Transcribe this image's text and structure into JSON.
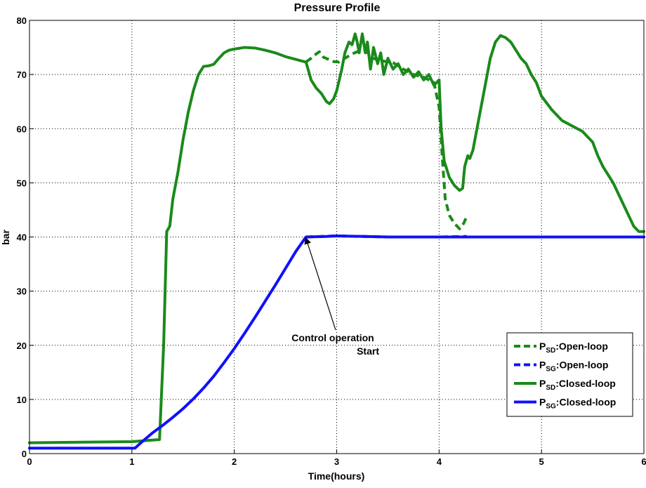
{
  "chart_data": {
    "type": "line",
    "title": "Pressure Profile",
    "xlabel": "Time(hours)",
    "ylabel": "bar",
    "xlim": [
      0,
      6
    ],
    "ylim": [
      0,
      80
    ],
    "xticks": [
      "0",
      "1",
      "2",
      "3",
      "4",
      "5",
      "6"
    ],
    "yticks": [
      "0",
      "10",
      "20",
      "30",
      "40",
      "50",
      "60",
      "70",
      "80"
    ],
    "grid": true,
    "legend_position": "bottom-right",
    "annotation": {
      "line1": "Control operation",
      "line2": "Start",
      "arrow_target": [
        2.7,
        40
      ]
    },
    "colors": {
      "green": "#1a8a1a",
      "blue": "#1010ff"
    },
    "series": [
      {
        "name_main": "P",
        "name_sub": "SD",
        "name_suffix": ":Open-loop",
        "color": "green",
        "dash": true,
        "points": [
          [
            2.7,
            72.3
          ],
          [
            2.75,
            73
          ],
          [
            2.8,
            73.8
          ],
          [
            2.83,
            74.2
          ],
          [
            2.87,
            73.2
          ],
          [
            2.92,
            72.8
          ],
          [
            2.97,
            72.4
          ],
          [
            3.02,
            72.3
          ],
          [
            3.08,
            73
          ],
          [
            3.15,
            73.8
          ],
          [
            3.2,
            74.2
          ],
          [
            3.28,
            74.5
          ],
          [
            3.35,
            73
          ],
          [
            3.45,
            72.5
          ],
          [
            3.55,
            72.2
          ],
          [
            3.65,
            71
          ],
          [
            3.75,
            70
          ],
          [
            3.85,
            69.5
          ],
          [
            3.95,
            68.5
          ],
          [
            4.0,
            64
          ],
          [
            4.03,
            55
          ],
          [
            4.06,
            47
          ],
          [
            4.1,
            44
          ],
          [
            4.15,
            42.5
          ],
          [
            4.2,
            41.5
          ],
          [
            4.24,
            42.5
          ],
          [
            4.27,
            43.8
          ]
        ]
      },
      {
        "name_main": "P",
        "name_sub": "SG",
        "name_suffix": ":Open-loop",
        "color": "blue",
        "dash": true,
        "points": [
          [
            2.7,
            40
          ],
          [
            3.0,
            40.2
          ],
          [
            3.5,
            40
          ],
          [
            4.0,
            40
          ],
          [
            4.27,
            40.1
          ]
        ]
      },
      {
        "name_main": "P",
        "name_sub": "SD",
        "name_suffix": ":Closed-loop",
        "color": "green",
        "dash": false,
        "points": [
          [
            0,
            2
          ],
          [
            0.5,
            2.1
          ],
          [
            1.0,
            2.2
          ],
          [
            1.2,
            2.5
          ],
          [
            1.27,
            2.6
          ],
          [
            1.31,
            20
          ],
          [
            1.34,
            41
          ],
          [
            1.37,
            42
          ],
          [
            1.4,
            47
          ],
          [
            1.45,
            52
          ],
          [
            1.5,
            58
          ],
          [
            1.55,
            63
          ],
          [
            1.6,
            67
          ],
          [
            1.65,
            70
          ],
          [
            1.7,
            71.5
          ],
          [
            1.75,
            71.6
          ],
          [
            1.8,
            71.9
          ],
          [
            1.85,
            73
          ],
          [
            1.9,
            74
          ],
          [
            1.95,
            74.5
          ],
          [
            2.0,
            74.7
          ],
          [
            2.1,
            75
          ],
          [
            2.2,
            74.9
          ],
          [
            2.3,
            74.5
          ],
          [
            2.4,
            74
          ],
          [
            2.5,
            73.3
          ],
          [
            2.6,
            72.8
          ],
          [
            2.7,
            72.3
          ],
          [
            2.72,
            71
          ],
          [
            2.75,
            69
          ],
          [
            2.8,
            67.5
          ],
          [
            2.85,
            66.5
          ],
          [
            2.9,
            65
          ],
          [
            2.93,
            64.6
          ],
          [
            2.97,
            65.5
          ],
          [
            3.0,
            67
          ],
          [
            3.05,
            71
          ],
          [
            3.08,
            74
          ],
          [
            3.12,
            76
          ],
          [
            3.15,
            75.5
          ],
          [
            3.18,
            77.5
          ],
          [
            3.2,
            76
          ],
          [
            3.22,
            74
          ],
          [
            3.25,
            77.5
          ],
          [
            3.28,
            74
          ],
          [
            3.3,
            76
          ],
          [
            3.33,
            71
          ],
          [
            3.36,
            75
          ],
          [
            3.4,
            72
          ],
          [
            3.43,
            74
          ],
          [
            3.46,
            70
          ],
          [
            3.5,
            73
          ],
          [
            3.55,
            71
          ],
          [
            3.6,
            72
          ],
          [
            3.65,
            70
          ],
          [
            3.7,
            71
          ],
          [
            3.75,
            69.5
          ],
          [
            3.8,
            70.5
          ],
          [
            3.85,
            69
          ],
          [
            3.9,
            70
          ],
          [
            3.95,
            68
          ],
          [
            4.0,
            69
          ],
          [
            4.02,
            60
          ],
          [
            4.05,
            54
          ],
          [
            4.1,
            51
          ],
          [
            4.15,
            49.5
          ],
          [
            4.2,
            48.6
          ],
          [
            4.23,
            49
          ],
          [
            4.25,
            53
          ],
          [
            4.28,
            55
          ],
          [
            4.3,
            54.5
          ],
          [
            4.33,
            56
          ],
          [
            4.36,
            59
          ],
          [
            4.4,
            63
          ],
          [
            4.45,
            68
          ],
          [
            4.5,
            73
          ],
          [
            4.55,
            76
          ],
          [
            4.6,
            77.2
          ],
          [
            4.65,
            76.8
          ],
          [
            4.7,
            76
          ],
          [
            4.75,
            74.5
          ],
          [
            4.8,
            73
          ],
          [
            4.85,
            72
          ],
          [
            4.9,
            70
          ],
          [
            4.95,
            68.5
          ],
          [
            5.0,
            66
          ],
          [
            5.1,
            63.5
          ],
          [
            5.2,
            61.5
          ],
          [
            5.3,
            60.5
          ],
          [
            5.4,
            59.5
          ],
          [
            5.5,
            57.5
          ],
          [
            5.55,
            55
          ],
          [
            5.6,
            53
          ],
          [
            5.7,
            50
          ],
          [
            5.8,
            46
          ],
          [
            5.9,
            42
          ],
          [
            5.95,
            41
          ],
          [
            6.0,
            41
          ]
        ]
      },
      {
        "name_main": "P",
        "name_sub": "SG",
        "name_suffix": ":Closed-loop",
        "color": "blue",
        "dash": false,
        "points": [
          [
            0,
            1
          ],
          [
            0.5,
            1
          ],
          [
            1.03,
            1
          ],
          [
            1.1,
            2.2
          ],
          [
            1.2,
            3.8
          ],
          [
            1.3,
            5.2
          ],
          [
            1.4,
            6.7
          ],
          [
            1.5,
            8.3
          ],
          [
            1.6,
            10.1
          ],
          [
            1.7,
            12.1
          ],
          [
            1.8,
            14.3
          ],
          [
            1.9,
            16.8
          ],
          [
            2.0,
            19.4
          ],
          [
            2.1,
            22.2
          ],
          [
            2.2,
            25.1
          ],
          [
            2.3,
            28.1
          ],
          [
            2.4,
            31.1
          ],
          [
            2.5,
            34.2
          ],
          [
            2.6,
            37.3
          ],
          [
            2.7,
            40
          ],
          [
            2.9,
            40.1
          ],
          [
            3.0,
            40.2
          ],
          [
            3.5,
            40
          ],
          [
            4.0,
            40
          ],
          [
            5.0,
            40
          ],
          [
            6.0,
            40
          ]
        ]
      }
    ]
  }
}
